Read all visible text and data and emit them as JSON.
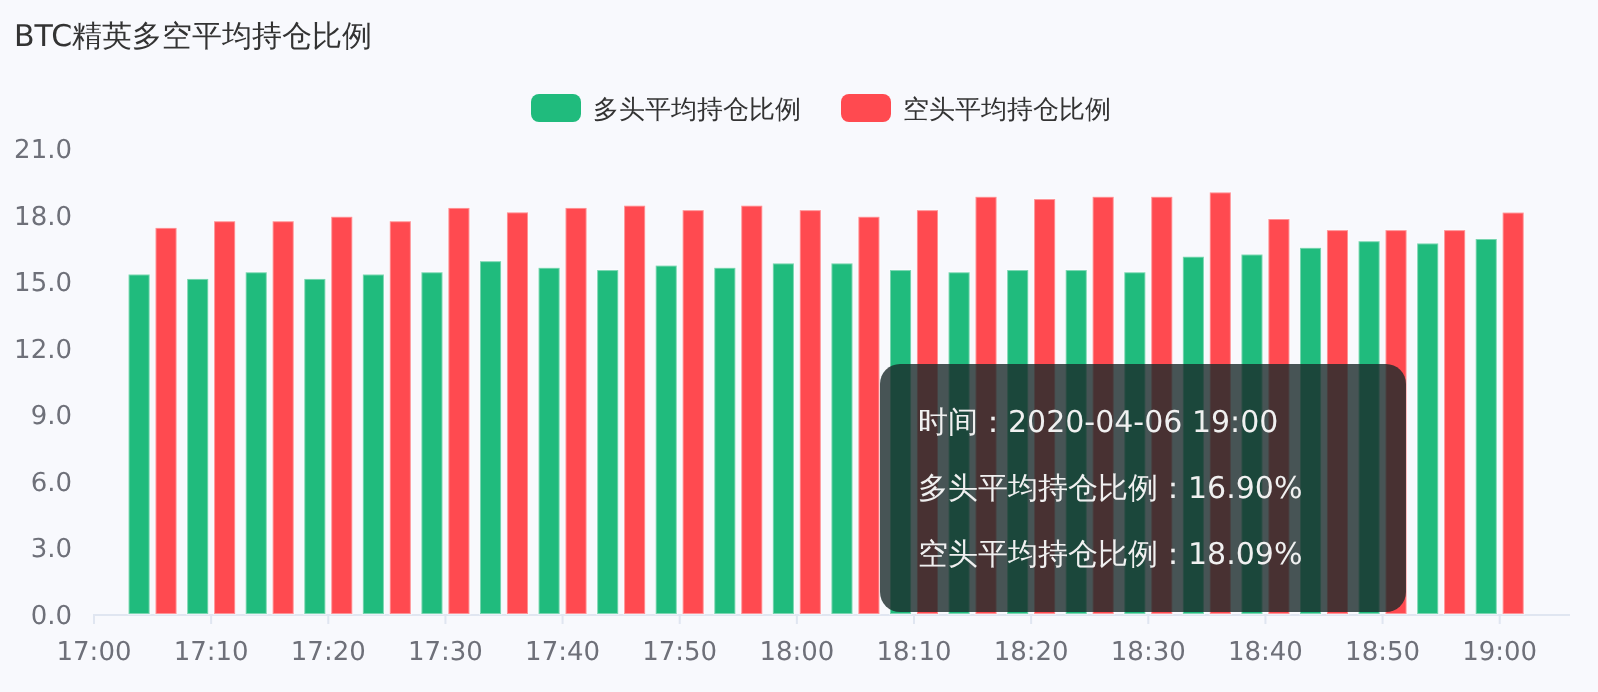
{
  "chart_data": {
    "type": "bar",
    "title": "BTC精英多空平均持仓比例",
    "x": [
      "2020-04-06T17:05",
      "2020-04-06T17:10",
      "2020-04-06T17:15",
      "2020-04-06T17:20",
      "2020-04-06T17:25",
      "2020-04-06T17:30",
      "2020-04-06T17:35",
      "2020-04-06T17:40",
      "2020-04-06T17:45",
      "2020-04-06T17:50",
      "2020-04-06T17:55",
      "2020-04-06T18:00",
      "2020-04-06T18:05",
      "2020-04-06T18:10",
      "2020-04-06T18:15",
      "2020-04-06T18:20",
      "2020-04-06T18:25",
      "2020-04-06T18:30",
      "2020-04-06T18:35",
      "2020-04-06T18:40",
      "2020-04-06T18:45",
      "2020-04-06T18:50",
      "2020-04-06T18:55",
      "2020-04-06T19:00"
    ],
    "series": [
      {
        "name": "多头平均持仓比例",
        "color": "#20bb7d",
        "values": [
          15.3,
          15.1,
          15.4,
          15.1,
          15.3,
          15.4,
          15.9,
          15.6,
          15.5,
          15.7,
          15.6,
          15.8,
          15.8,
          15.5,
          15.4,
          15.5,
          15.5,
          15.4,
          16.1,
          16.2,
          16.5,
          16.8,
          16.7,
          16.9
        ]
      },
      {
        "name": "空头平均持仓比例",
        "color": "#ff4a50",
        "values": [
          17.4,
          17.7,
          17.7,
          17.9,
          17.7,
          18.3,
          18.1,
          18.3,
          18.4,
          18.2,
          18.4,
          18.2,
          17.9,
          18.2,
          18.8,
          18.7,
          18.8,
          18.8,
          19.0,
          17.8,
          17.3,
          17.3,
          17.3,
          18.09
        ]
      }
    ],
    "xlim": [
      "2020-04-06T17:00",
      "2020-04-06T19:06"
    ],
    "xticks": [
      {
        "value": "2020-04-06T17:00",
        "label": "17:00"
      },
      {
        "value": "2020-04-06T17:10",
        "label": "17:10"
      },
      {
        "value": "2020-04-06T17:20",
        "label": "17:20"
      },
      {
        "value": "2020-04-06T17:30",
        "label": "17:30"
      },
      {
        "value": "2020-04-06T17:40",
        "label": "17:40"
      },
      {
        "value": "2020-04-06T17:50",
        "label": "17:50"
      },
      {
        "value": "2020-04-06T18:00",
        "label": "18:00"
      },
      {
        "value": "2020-04-06T18:10",
        "label": "18:10"
      },
      {
        "value": "2020-04-06T18:20",
        "label": "18:20"
      },
      {
        "value": "2020-04-06T18:30",
        "label": "18:30"
      },
      {
        "value": "2020-04-06T18:40",
        "label": "18:40"
      },
      {
        "value": "2020-04-06T18:50",
        "label": "18:50"
      },
      {
        "value": "2020-04-06T19:00",
        "label": "19:00"
      }
    ],
    "ylim": [
      0,
      21
    ],
    "yticks": [
      {
        "value": 0,
        "label": "0.0"
      },
      {
        "value": 3,
        "label": "3.0"
      },
      {
        "value": 6,
        "label": "6.0"
      },
      {
        "value": 9,
        "label": "9.0"
      },
      {
        "value": 12,
        "label": "12.0"
      },
      {
        "value": 15,
        "label": "15.0"
      },
      {
        "value": 18,
        "label": "18.0"
      },
      {
        "value": 21,
        "label": "21.0"
      }
    ],
    "grid": false,
    "legend": "top",
    "annotations": [
      "时间：2020-04-06 19:00",
      "多头平均持仓比例：16.90%",
      "空头平均持仓比例：18.09%"
    ]
  }
}
